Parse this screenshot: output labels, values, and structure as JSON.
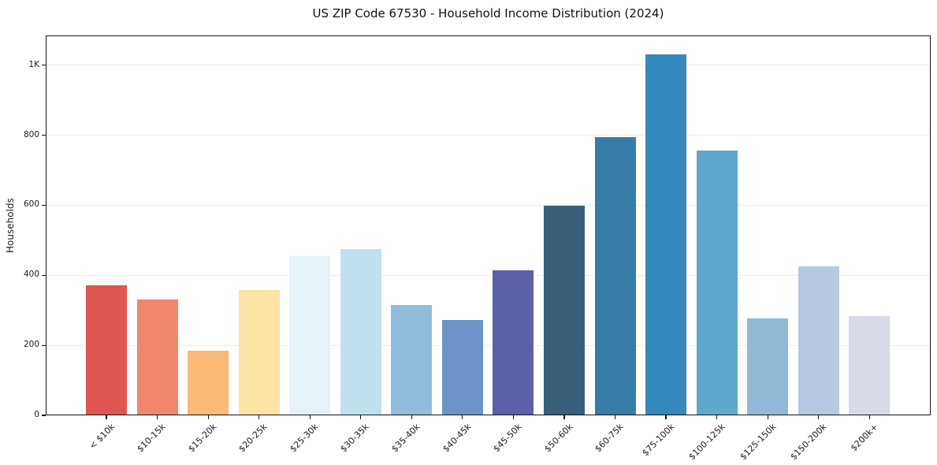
{
  "chart_data": {
    "type": "bar",
    "title": "US ZIP Code 67530 - Household Income Distribution (2024)",
    "xlabel": "",
    "ylabel": "Households",
    "categories": [
      "< $10k",
      "$10-15k",
      "$15-20k",
      "$20-25k",
      "$25-30k",
      "$30-35k",
      "$35-40k",
      "$40-45k",
      "$45-50k",
      "$50-60k",
      "$60-75k",
      "$75-100k",
      "$100-125k",
      "$125-150k",
      "$150-200k",
      "$200k+"
    ],
    "values": [
      371,
      331,
      185,
      358,
      454,
      475,
      315,
      272,
      414,
      598,
      795,
      1032,
      757,
      277,
      425,
      284
    ],
    "bar_colors": [
      "#dd5750",
      "#f0876a",
      "#fbb976",
      "#fde3a4",
      "#e5f2f8",
      "#c0e0ee",
      "#91bddd",
      "#6b93c7",
      "#5c60a8",
      "#38607a",
      "#377ca6",
      "#3589bd",
      "#5ea7cd",
      "#90b9d8",
      "#b7c9e1",
      "#d8dae7"
    ],
    "ytick_values": [
      0,
      200,
      400,
      600,
      800,
      1000
    ],
    "ytick_labels": [
      "0",
      "200",
      "400",
      "600",
      "800",
      "1K"
    ],
    "ylim": [
      0,
      1085
    ],
    "grid": "horizontal",
    "gridline_color": "#ececf1",
    "background_color": "#ffffff",
    "legend": "none"
  }
}
